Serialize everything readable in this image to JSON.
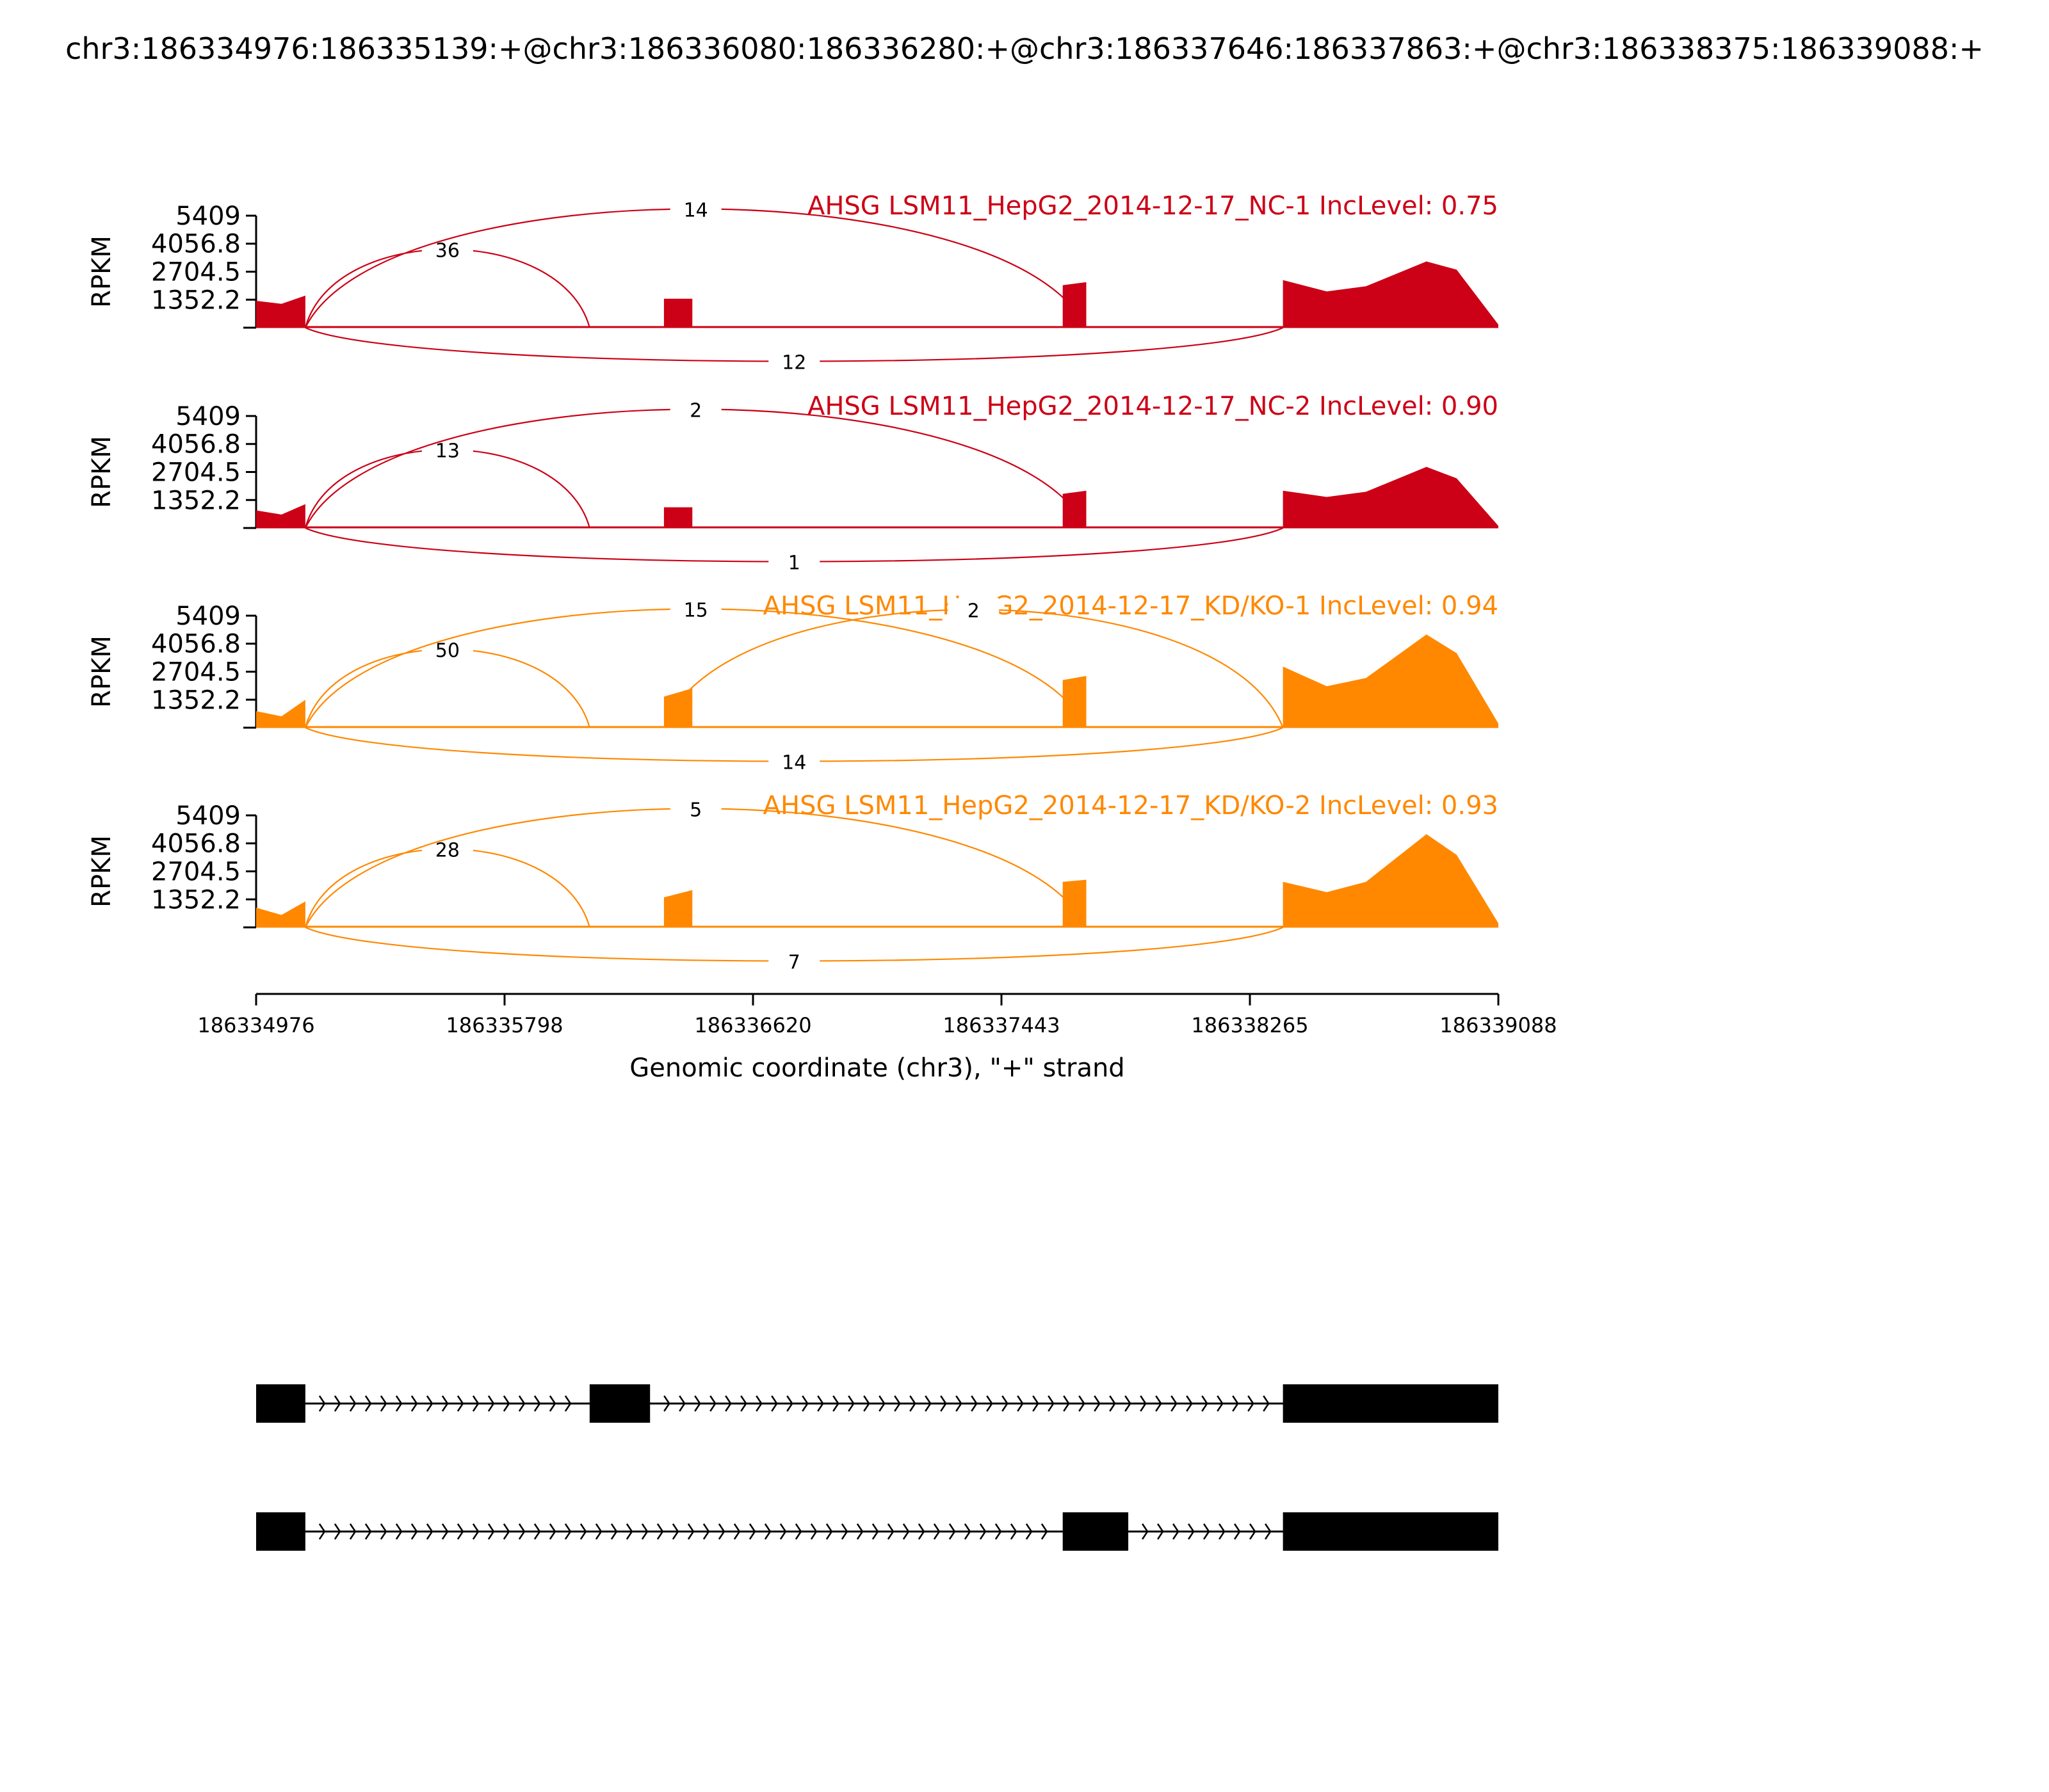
{
  "title": "chr3:186334976:186335139:+@chr3:186336080:186336280:+@chr3:186337646:186337863:+@chr3:186338375:186339088:+",
  "colors": {
    "nc": "#cc0016",
    "kd": "#ff8800",
    "exon": "#000000",
    "axis": "#000000"
  },
  "chart_data": {
    "type": "area",
    "title": "chr3:186334976:186335139:+@chr3:186336080:186336280:+@chr3:186337646:186337863:+@chr3:186338375:186339088:+",
    "xlabel": "Genomic coordinate (chr3), \"+\" strand",
    "ylabel": "RPKM",
    "xlim": [
      186334976,
      186339088
    ],
    "ylim": [
      0,
      5409
    ],
    "xticks": [
      "186334976",
      "186335798",
      "186336620",
      "186337443",
      "186338265",
      "186339088"
    ],
    "yticks": [
      "5409",
      "4056.8",
      "2704.5",
      "1352.2"
    ],
    "exons": [
      {
        "start": 186334976,
        "end": 186335139
      },
      {
        "start": 186336080,
        "end": 186336280
      },
      {
        "start": 186337646,
        "end": 186337863
      },
      {
        "start": 186338375,
        "end": 186339088
      }
    ],
    "series": [
      {
        "name": "AHSG LSM11_HepG2_2014-12-17_NC-1 IncLevel: 0.75",
        "group": "nc",
        "coverage": [
          {
            "x": 186334976,
            "y": 1300
          },
          {
            "x": 186335060,
            "y": 1150
          },
          {
            "x": 186335139,
            "y": 1550
          },
          {
            "x": 186336326,
            "y": 1400
          },
          {
            "x": 186336420,
            "y": 1400
          },
          {
            "x": 186337646,
            "y": 2050
          },
          {
            "x": 186337724,
            "y": 2200
          },
          {
            "x": 186338375,
            "y": 2300
          },
          {
            "x": 186338520,
            "y": 1750
          },
          {
            "x": 186338650,
            "y": 2000
          },
          {
            "x": 186338850,
            "y": 3200
          },
          {
            "x": 186338950,
            "y": 2800
          },
          {
            "x": 186339088,
            "y": 150
          }
        ],
        "junctions": [
          {
            "from": 186335139,
            "to": 186336080,
            "count": "36",
            "above": true
          },
          {
            "from": 186335139,
            "to": 186337724,
            "count": "14",
            "above": true
          },
          {
            "from": 186335139,
            "to": 186338375,
            "count": "12",
            "above": false
          }
        ]
      },
      {
        "name": "AHSG LSM11_HepG2_2014-12-17_NC-2 IncLevel: 0.90",
        "group": "nc",
        "coverage": [
          {
            "x": 186334976,
            "y": 850
          },
          {
            "x": 186335060,
            "y": 650
          },
          {
            "x": 186335139,
            "y": 1150
          },
          {
            "x": 186336326,
            "y": 1000
          },
          {
            "x": 186336420,
            "y": 1000
          },
          {
            "x": 186337646,
            "y": 1650
          },
          {
            "x": 186337724,
            "y": 1800
          },
          {
            "x": 186338375,
            "y": 1800
          },
          {
            "x": 186338520,
            "y": 1500
          },
          {
            "x": 186338650,
            "y": 1750
          },
          {
            "x": 186338850,
            "y": 2950
          },
          {
            "x": 186338950,
            "y": 2400
          },
          {
            "x": 186339088,
            "y": 100
          }
        ],
        "junctions": [
          {
            "from": 186335139,
            "to": 186336080,
            "count": "13",
            "above": true
          },
          {
            "from": 186335139,
            "to": 186337724,
            "count": "2",
            "above": true
          },
          {
            "from": 186335139,
            "to": 186338375,
            "count": "1",
            "above": false
          }
        ]
      },
      {
        "name": "AHSG LSM11_HepG2_2014-12-17_KD/KO-1 IncLevel: 0.94",
        "group": "kd",
        "coverage": [
          {
            "x": 186334976,
            "y": 800
          },
          {
            "x": 186335060,
            "y": 550
          },
          {
            "x": 186335139,
            "y": 1350
          },
          {
            "x": 186336326,
            "y": 1500
          },
          {
            "x": 186336420,
            "y": 1900
          },
          {
            "x": 186337646,
            "y": 2300
          },
          {
            "x": 186337724,
            "y": 2500
          },
          {
            "x": 186338375,
            "y": 2950
          },
          {
            "x": 186338520,
            "y": 2000
          },
          {
            "x": 186338650,
            "y": 2400
          },
          {
            "x": 186338850,
            "y": 4500
          },
          {
            "x": 186338950,
            "y": 3600
          },
          {
            "x": 186339088,
            "y": 200
          }
        ],
        "junctions": [
          {
            "from": 186335139,
            "to": 186336080,
            "count": "50",
            "above": true
          },
          {
            "from": 186335139,
            "to": 186337724,
            "count": "15",
            "above": true
          },
          {
            "from": 186336326,
            "to": 186338375,
            "count": "2",
            "above": true
          },
          {
            "from": 186335139,
            "to": 186338375,
            "count": "14",
            "above": false
          }
        ]
      },
      {
        "name": "AHSG LSM11_HepG2_2014-12-17_KD/KO-2 IncLevel: 0.93",
        "group": "kd",
        "coverage": [
          {
            "x": 186334976,
            "y": 950
          },
          {
            "x": 186335060,
            "y": 600
          },
          {
            "x": 186335139,
            "y": 1250
          },
          {
            "x": 186336326,
            "y": 1450
          },
          {
            "x": 186336420,
            "y": 1800
          },
          {
            "x": 186337646,
            "y": 2200
          },
          {
            "x": 186337724,
            "y": 2300
          },
          {
            "x": 186338375,
            "y": 2200
          },
          {
            "x": 186338520,
            "y": 1700
          },
          {
            "x": 186338650,
            "y": 2200
          },
          {
            "x": 186338850,
            "y": 4500
          },
          {
            "x": 186338950,
            "y": 3500
          },
          {
            "x": 186339088,
            "y": 200
          }
        ],
        "junctions": [
          {
            "from": 186335139,
            "to": 186336080,
            "count": "28",
            "above": true
          },
          {
            "from": 186335139,
            "to": 186337724,
            "count": "5",
            "above": true
          },
          {
            "from": 186335139,
            "to": 186338375,
            "count": "7",
            "above": false
          }
        ]
      }
    ],
    "isoforms": [
      {
        "exons": [
          [
            186334976,
            186335139
          ],
          [
            186336080,
            186336280
          ],
          [
            186338375,
            186339088
          ]
        ]
      },
      {
        "exons": [
          [
            186334976,
            186335139
          ],
          [
            186337646,
            186337863
          ],
          [
            186338375,
            186339088
          ]
        ]
      }
    ]
  }
}
